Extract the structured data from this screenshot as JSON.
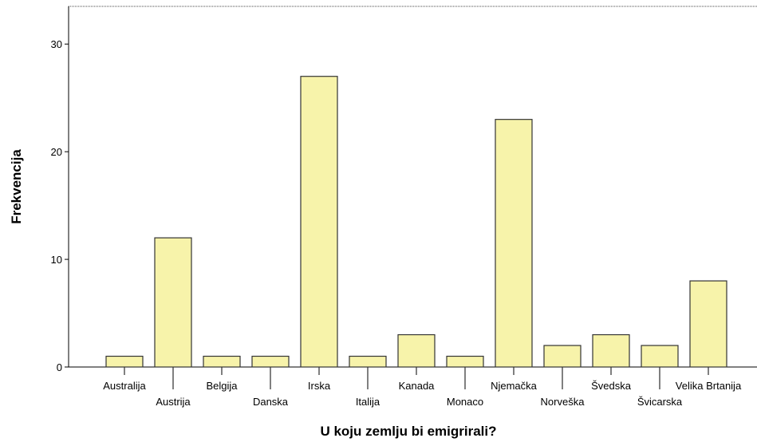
{
  "chart_data": {
    "type": "bar",
    "x_label": "U koju zemlju bi emigrirali?",
    "y_label": "Frekvencija",
    "categories": [
      "Australija",
      "Austrija",
      "Belgija",
      "Danska",
      "Irska",
      "Italija",
      "Kanada",
      "Monaco",
      "Njemačka",
      "Norveška",
      "Švedska",
      "Švicarska",
      "Velika Brtanija"
    ],
    "values": [
      1,
      12,
      1,
      1,
      27,
      1,
      3,
      1,
      23,
      2,
      3,
      2,
      8
    ],
    "color": "#f7f3aa",
    "ylim": [
      0,
      33.5
    ],
    "yticks": [
      0,
      10,
      20,
      30
    ]
  }
}
